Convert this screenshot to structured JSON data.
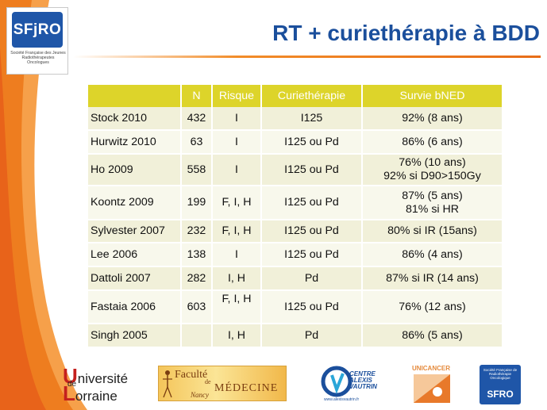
{
  "slide": {
    "title": "RT + curiethérapie à BDD"
  },
  "header_logo": {
    "acronym": "SFjRO",
    "subtitle": "Société Française des Jeunes Radiothérapeutes Oncologues"
  },
  "table": {
    "headers": [
      "",
      "N",
      "Risque",
      "Curiethérapie",
      "Survie bNED"
    ],
    "rows": [
      {
        "study": "Stock 2010",
        "n": "432",
        "risque": "I",
        "curie": "I125",
        "survie_1": "92% (8 ans)",
        "survie_2": ""
      },
      {
        "study": "Hurwitz 2010",
        "n": "63",
        "risque": "I",
        "curie": "I125 ou Pd",
        "survie_1": "86% (6 ans)",
        "survie_2": ""
      },
      {
        "study": "Ho 2009",
        "n": "558",
        "risque": "I",
        "curie": "I125 ou Pd",
        "survie_1": "76% (10 ans)",
        "survie_2": "92% si D90>150Gy"
      },
      {
        "study": "Koontz 2009",
        "n": "199",
        "risque": "F, I, H",
        "curie": "I125 ou Pd",
        "survie_1": "87% (5 ans)",
        "survie_2": "81% si HR"
      },
      {
        "study": "Sylvester 2007",
        "n": "232",
        "risque": "F, I, H",
        "curie": "I125 ou Pd",
        "survie_1": "80% si IR (15ans)",
        "survie_2": ""
      },
      {
        "study": "Lee 2006",
        "n": "138",
        "risque": "I",
        "curie": "I125 ou Pd",
        "survie_1": "86% (4 ans)",
        "survie_2": ""
      },
      {
        "study": "Dattoli 2007",
        "n": "282",
        "risque": "I, H",
        "curie": "Pd",
        "survie_1": "87% si IR (14 ans)",
        "survie_2": ""
      },
      {
        "study": "Fastaia 2006",
        "n": "603",
        "risque": "F, I, H",
        "curie": "I125 ou Pd",
        "survie_1": "76% (12 ans)",
        "survie_2": ""
      },
      {
        "study": "Singh 2005",
        "n": "",
        "risque": "I, H",
        "curie": "Pd",
        "survie_1": "86% (5 ans)",
        "survie_2": ""
      }
    ]
  },
  "footer_logos": {
    "lorraine": {
      "line1_cap": "U",
      "line1": "niversité",
      "de": "de",
      "line2_cap": "L",
      "line2": "orraine"
    },
    "faculte": {
      "line1": "Faculté",
      "line2": "de",
      "line3": "MÉDECINE",
      "line4": "Nancy"
    },
    "cav": {
      "line1": "CENTRE",
      "line2": "ALEXIS",
      "line3": "VAUTRIN",
      "url": "www.alexisvautrin.fr"
    },
    "unicancer": {
      "name": "UNICANCER"
    },
    "sfro": {
      "small": "Société Française de Radiothérapie Oncologique",
      "acronym": "SFRO"
    }
  },
  "colors": {
    "title": "#1b4f9c",
    "header_bg": "#ddd42a",
    "row_odd": "#f1f0d9",
    "row_even": "#f8f8ec",
    "accent_orange": "#f28c28"
  }
}
